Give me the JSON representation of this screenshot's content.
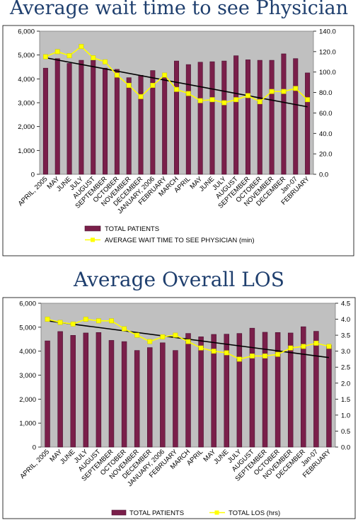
{
  "titles": {
    "chart1": "Average wait time to see Physician",
    "chart2": "Average Overall LOS"
  },
  "colors": {
    "bar_fill": "#7a1f4a",
    "bar_edge": "#4a1030",
    "plot_bg": "#c0c0c0",
    "line": "#ffff00",
    "trend": "#000000",
    "title": "#1f3f6e"
  },
  "chart_data": [
    {
      "type": "bar",
      "title": "Average wait time to see Physician",
      "categories": [
        "APRIL, 2005",
        "MAY",
        "JUNE",
        "JULY",
        "AUGUST",
        "SEPTEMBER",
        "OCTOBER",
        "NOVEMBER",
        "DECEMBER",
        "JANUARY, 2006",
        "FEBRUARY",
        "MARCH",
        "APRIL",
        "MAY",
        "JUNE",
        "JULY",
        "AUGUST",
        "SEPTEMBER",
        "OCTOBER",
        "NOVEMBER",
        "DECEMBER",
        "Jan-07",
        "FEBRUARY"
      ],
      "series": [
        {
          "name": "TOTAL PATIENTS",
          "type": "bar",
          "axis": "left",
          "values": [
            4450,
            4850,
            4650,
            4780,
            4780,
            4450,
            4400,
            4050,
            4150,
            4350,
            4050,
            4750,
            4600,
            4700,
            4720,
            4750,
            4970,
            4800,
            4780,
            4780,
            5050,
            4850,
            4250
          ]
        },
        {
          "name": "AVERAGE WAIT TIME TO SEE PHYSICIAN (min)",
          "type": "line",
          "axis": "right",
          "values": [
            115,
            120,
            116,
            125,
            114,
            110,
            97,
            87,
            76,
            87,
            97,
            83,
            79,
            72,
            73,
            70,
            73,
            77,
            71,
            81,
            81,
            84,
            73
          ]
        }
      ],
      "trendline": {
        "series": "AVERAGE WAIT TIME TO SEE PHYSICIAN (min)",
        "start": 114,
        "end": 66
      },
      "yleft": {
        "min": 0,
        "max": 6000,
        "ticks": [
          "0",
          "1,000",
          "2,000",
          "3,000",
          "4,000",
          "5,000",
          "6,000"
        ]
      },
      "yright": {
        "min": 0,
        "max": 140,
        "ticks": [
          "0.0",
          "20.0",
          "40.0",
          "60.0",
          "80.0",
          "100.0",
          "120.0",
          "140.0"
        ]
      },
      "legend_position": "bottom"
    },
    {
      "type": "bar",
      "title": "Average Overall LOS",
      "categories": [
        "APRIL, 2005",
        "MAY",
        "JUNE",
        "JULY",
        "AUGUST",
        "SEPTEMBER",
        "OCTOBER",
        "NOVEMBER",
        "DECEMBER",
        "JANUARY, 2006",
        "FEBRUARY",
        "MARCH",
        "APRIL",
        "MAY",
        "JUNE",
        "JULY",
        "AUGUST",
        "SEPTEMBER",
        "OCTOBER",
        "NOVEMBER",
        "DECEMBER",
        "Jan-07",
        "FEBRUARY"
      ],
      "series": [
        {
          "name": "TOTAL PATIENTS",
          "type": "bar",
          "axis": "left",
          "values": [
            4430,
            4820,
            4660,
            4760,
            4780,
            4450,
            4400,
            4030,
            4150,
            4350,
            4030,
            4740,
            4600,
            4700,
            4710,
            4740,
            4960,
            4790,
            4780,
            4760,
            5020,
            4830,
            4250
          ]
        },
        {
          "name": "TOTAL LOS (hrs)",
          "type": "line",
          "axis": "right",
          "values": [
            4.0,
            3.9,
            3.85,
            4.0,
            3.95,
            3.95,
            3.7,
            3.5,
            3.3,
            3.45,
            3.5,
            3.3,
            3.1,
            3.0,
            2.95,
            2.75,
            2.85,
            2.85,
            2.9,
            3.1,
            3.15,
            3.25,
            3.15
          ]
        }
      ],
      "trendline": {
        "series": "TOTAL LOS (hrs)",
        "start": 3.95,
        "end": 2.8
      },
      "yleft": {
        "min": 0,
        "max": 6000,
        "ticks": [
          "0",
          "1,000",
          "2,000",
          "3,000",
          "4,000",
          "5,000",
          "6,000"
        ]
      },
      "yright": {
        "min": 0,
        "max": 4.5,
        "ticks": [
          "0.0",
          "0.5",
          "1.0",
          "1.5",
          "2.0",
          "2.5",
          "3.0",
          "3.5",
          "4.0",
          "4.5"
        ]
      },
      "legend_position": "bottom"
    }
  ]
}
